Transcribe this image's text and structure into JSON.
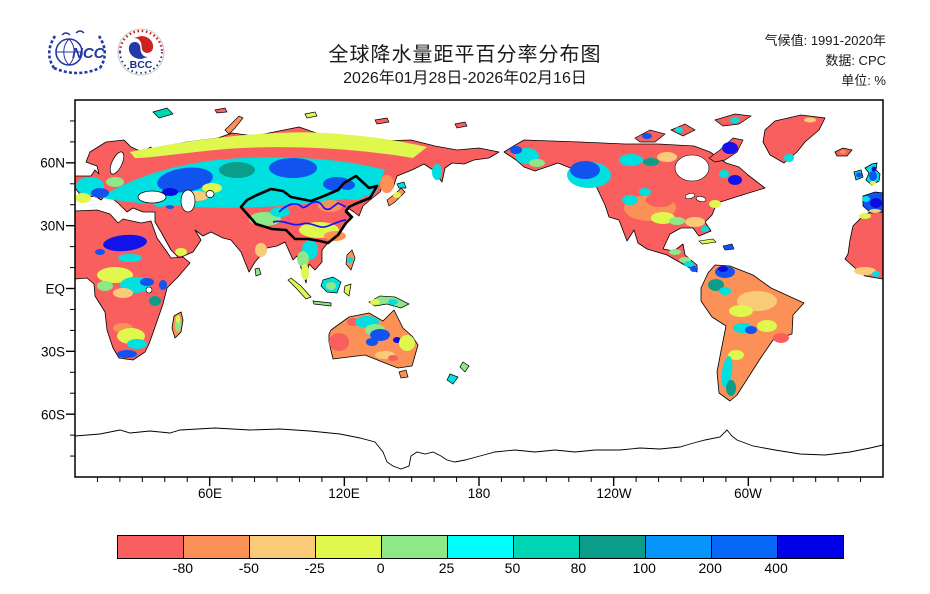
{
  "header": {
    "title": "全球降水量距平百分率分布图",
    "date_range": "2026年01月28日-2026年02月16日",
    "meta": {
      "lines": [
        "气候值: 1991-2020年",
        "数据: CPC",
        "单位: %"
      ]
    },
    "logos": [
      {
        "label": "NCC"
      },
      {
        "label": "BCC"
      }
    ]
  },
  "map": {
    "lat_labels": [
      "60N",
      "30N",
      "EQ",
      "30S",
      "60S"
    ],
    "lon_labels": [
      "60E",
      "120E",
      "180",
      "120W",
      "60W"
    ]
  },
  "colorbar": {
    "unit": "%",
    "tick_labels": [
      "-80",
      "-50",
      "-25",
      "0",
      "25",
      "50",
      "80",
      "100",
      "200",
      "400"
    ],
    "colors": [
      "#fa5f5f",
      "#fb9157",
      "#f9cb79",
      "#e0f74d",
      "#8ee887",
      "#00ffff",
      "#00d6b4",
      "#0b9d8a",
      "#0795fc",
      "#0666f5",
      "#0000e8"
    ]
  },
  "palette": {
    "land_dry": "#fa5f5f",
    "river_line": "#1414ff",
    "china_border": "#000000",
    "coastline": "#000000"
  }
}
